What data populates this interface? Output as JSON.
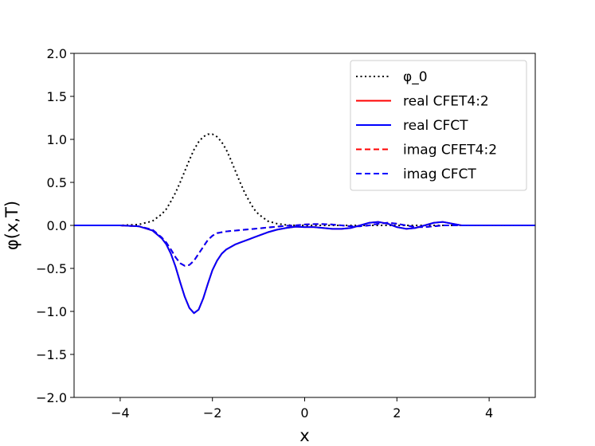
{
  "chart_data": {
    "type": "line",
    "title": "",
    "xlabel": "x",
    "ylabel": "φ(x,T)",
    "xlim": [
      -5,
      5
    ],
    "ylim": [
      -2.0,
      2.0
    ],
    "xticks": [
      -4,
      -2,
      0,
      2,
      4
    ],
    "xtick_labels": [
      "−4",
      "−2",
      "0",
      "2",
      "4"
    ],
    "yticks": [
      -2.0,
      -1.5,
      -1.0,
      -0.5,
      0.0,
      0.5,
      1.0,
      1.5,
      2.0
    ],
    "ytick_labels": [
      "−2.0",
      "−1.5",
      "−1.0",
      "−0.5",
      "0.0",
      "0.5",
      "1.0",
      "1.5",
      "2.0"
    ],
    "grid": false,
    "legend_position": "top-right",
    "x": [
      -5.0,
      -4.0,
      -3.6,
      -3.3,
      -3.1,
      -3.0,
      -2.9,
      -2.8,
      -2.7,
      -2.6,
      -2.5,
      -2.4,
      -2.3,
      -2.2,
      -2.1,
      -2.0,
      -1.9,
      -1.8,
      -1.7,
      -1.6,
      -1.5,
      -1.4,
      -1.3,
      -1.2,
      -1.1,
      -1.0,
      -0.8,
      -0.6,
      -0.4,
      -0.2,
      0.0,
      0.2,
      0.4,
      0.6,
      0.8,
      1.0,
      1.2,
      1.4,
      1.6,
      1.8,
      2.0,
      2.2,
      2.4,
      2.6,
      2.8,
      3.0,
      3.2,
      3.4,
      3.6,
      3.8,
      4.0,
      4.5,
      5.0
    ],
    "series": [
      {
        "name": "φ_0",
        "color": "#000000",
        "style": "dotted",
        "values": [
          0.0,
          0.0,
          0.01,
          0.05,
          0.13,
          0.19,
          0.28,
          0.38,
          0.5,
          0.63,
          0.76,
          0.88,
          0.97,
          1.03,
          1.06,
          1.06,
          1.03,
          0.97,
          0.88,
          0.76,
          0.63,
          0.5,
          0.38,
          0.28,
          0.19,
          0.13,
          0.05,
          0.02,
          0.005,
          0.0,
          0.0,
          0.0,
          0.0,
          0.0,
          0.0,
          0.0,
          0.0,
          0.0,
          0.0,
          0.0,
          0.0,
          0.0,
          0.0,
          0.0,
          0.0,
          0.0,
          0.0,
          0.0,
          0.0,
          0.0,
          0.0,
          0.0,
          0.0
        ]
      },
      {
        "name": "real CFET4:2",
        "color": "#ff0000",
        "style": "solid",
        "values": [
          0.0,
          0.0,
          -0.01,
          -0.06,
          -0.15,
          -0.22,
          -0.33,
          -0.48,
          -0.66,
          -0.83,
          -0.96,
          -1.02,
          -0.98,
          -0.85,
          -0.68,
          -0.52,
          -0.41,
          -0.33,
          -0.28,
          -0.25,
          -0.22,
          -0.2,
          -0.18,
          -0.16,
          -0.14,
          -0.12,
          -0.08,
          -0.05,
          -0.03,
          -0.015,
          -0.02,
          -0.02,
          -0.03,
          -0.04,
          -0.04,
          -0.03,
          0.0,
          0.03,
          0.04,
          0.02,
          -0.02,
          -0.04,
          -0.03,
          0.0,
          0.03,
          0.04,
          0.02,
          0.0,
          0.0,
          0.0,
          0.0,
          0.0,
          0.0
        ]
      },
      {
        "name": "real CFCT",
        "color": "#0000ff",
        "style": "solid",
        "values": [
          0.0,
          0.0,
          -0.01,
          -0.06,
          -0.15,
          -0.22,
          -0.33,
          -0.48,
          -0.66,
          -0.83,
          -0.96,
          -1.02,
          -0.98,
          -0.85,
          -0.68,
          -0.52,
          -0.41,
          -0.33,
          -0.28,
          -0.25,
          -0.22,
          -0.2,
          -0.18,
          -0.16,
          -0.14,
          -0.12,
          -0.08,
          -0.05,
          -0.03,
          -0.015,
          -0.02,
          -0.02,
          -0.03,
          -0.04,
          -0.04,
          -0.03,
          0.0,
          0.03,
          0.04,
          0.02,
          -0.02,
          -0.04,
          -0.03,
          0.0,
          0.03,
          0.04,
          0.02,
          0.0,
          0.0,
          0.0,
          0.0,
          0.0,
          0.0
        ]
      },
      {
        "name": "imag CFET4:2",
        "color": "#ff0000",
        "style": "dashed",
        "values": [
          0.0,
          0.0,
          -0.01,
          -0.05,
          -0.14,
          -0.2,
          -0.28,
          -0.37,
          -0.44,
          -0.47,
          -0.46,
          -0.41,
          -0.33,
          -0.25,
          -0.17,
          -0.12,
          -0.09,
          -0.08,
          -0.07,
          -0.065,
          -0.06,
          -0.055,
          -0.05,
          -0.045,
          -0.04,
          -0.035,
          -0.025,
          -0.015,
          -0.005,
          0.0,
          0.01,
          0.015,
          0.015,
          0.01,
          0.0,
          -0.01,
          -0.01,
          0.0,
          0.02,
          0.03,
          0.02,
          0.0,
          -0.02,
          -0.02,
          -0.01,
          0.0,
          0.0,
          0.0,
          0.0,
          0.0,
          0.0,
          0.0,
          0.0
        ]
      },
      {
        "name": "imag CFCT",
        "color": "#0000ff",
        "style": "dashed",
        "values": [
          0.0,
          0.0,
          -0.01,
          -0.05,
          -0.14,
          -0.2,
          -0.28,
          -0.37,
          -0.44,
          -0.47,
          -0.46,
          -0.41,
          -0.33,
          -0.25,
          -0.17,
          -0.12,
          -0.09,
          -0.08,
          -0.07,
          -0.065,
          -0.06,
          -0.055,
          -0.05,
          -0.045,
          -0.04,
          -0.035,
          -0.025,
          -0.015,
          -0.005,
          0.0,
          0.01,
          0.015,
          0.015,
          0.01,
          0.0,
          -0.01,
          -0.01,
          0.0,
          0.02,
          0.03,
          0.02,
          0.0,
          -0.02,
          -0.02,
          -0.01,
          0.0,
          0.0,
          0.0,
          0.0,
          0.0,
          0.0,
          0.0,
          0.0
        ]
      }
    ]
  }
}
